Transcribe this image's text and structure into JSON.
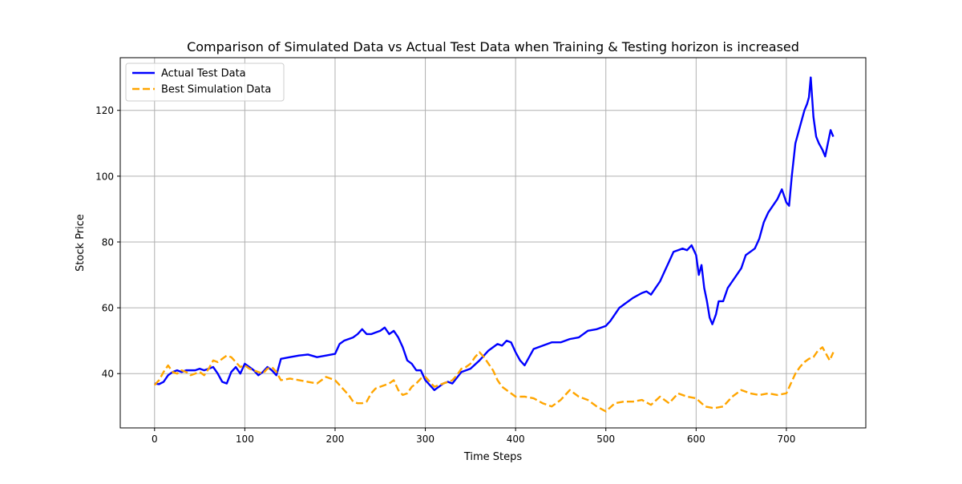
{
  "chart_data": {
    "type": "line",
    "title": "Comparison of Simulated Data vs Actual Test Data when Training & Testing horizon is increased",
    "xlabel": "Time Steps",
    "ylabel": "Stock Price",
    "xlim": [
      -38,
      788
    ],
    "ylim": [
      23.5,
      136
    ],
    "xticks": [
      0,
      100,
      200,
      300,
      400,
      500,
      600,
      700
    ],
    "yticks": [
      40,
      60,
      80,
      100,
      120
    ],
    "grid": true,
    "legend_position": "top-left",
    "series": [
      {
        "name": "Actual Test Data",
        "color": "#0000ff",
        "line_style": "solid",
        "x": [
          0,
          5,
          10,
          15,
          20,
          25,
          30,
          35,
          40,
          45,
          50,
          55,
          60,
          65,
          70,
          75,
          80,
          85,
          90,
          95,
          100,
          105,
          110,
          115,
          120,
          125,
          130,
          135,
          140,
          150,
          160,
          170,
          180,
          190,
          200,
          205,
          210,
          215,
          220,
          225,
          230,
          235,
          240,
          245,
          250,
          255,
          260,
          265,
          270,
          275,
          280,
          285,
          290,
          295,
          300,
          305,
          310,
          315,
          320,
          325,
          330,
          340,
          350,
          360,
          370,
          380,
          385,
          390,
          395,
          400,
          405,
          410,
          420,
          430,
          440,
          450,
          460,
          470,
          480,
          490,
          500,
          505,
          510,
          515,
          520,
          530,
          540,
          545,
          550,
          555,
          560,
          565,
          570,
          575,
          580,
          585,
          590,
          595,
          600,
          603,
          606,
          609,
          612,
          615,
          618,
          622,
          625,
          630,
          635,
          640,
          645,
          650,
          655,
          660,
          665,
          670,
          675,
          680,
          685,
          690,
          695,
          700,
          703,
          706,
          710,
          715,
          720,
          723,
          725,
          727,
          730,
          733,
          736,
          740,
          743,
          746,
          749,
          752
        ],
        "values": [
          37,
          36.8,
          37.5,
          39.5,
          40.5,
          41,
          40.5,
          41,
          41,
          41,
          41.5,
          41,
          41.5,
          42,
          40,
          37.5,
          37,
          40.5,
          42,
          40,
          43,
          42,
          41,
          39.5,
          40.5,
          42,
          41,
          39.5,
          44.5,
          45,
          45.5,
          45.8,
          45,
          45.5,
          46,
          49,
          50,
          50.5,
          51,
          52,
          53.5,
          52,
          52,
          52.5,
          53,
          54,
          52,
          53,
          51,
          48,
          44,
          43,
          41,
          41,
          38,
          36.5,
          35,
          36,
          37,
          37.5,
          37,
          40.5,
          41.5,
          44,
          47,
          49,
          48.5,
          50,
          49.5,
          46.5,
          44,
          42.5,
          47.5,
          48.5,
          49.5,
          49.5,
          50.5,
          51,
          53,
          53.5,
          54.5,
          56,
          58,
          60,
          61,
          63,
          64.5,
          65,
          64,
          66,
          68,
          71,
          74,
          77,
          77.5,
          78,
          77.5,
          79,
          76,
          70,
          73,
          66,
          62,
          57,
          55,
          58,
          62,
          62,
          66,
          68,
          70,
          72,
          76,
          77,
          78,
          81,
          86,
          89,
          91,
          93,
          96,
          92,
          91,
          100,
          110,
          115,
          120,
          122,
          124,
          130,
          118,
          112,
          110,
          108,
          106,
          110,
          114,
          112
        ]
      },
      {
        "name": "Best Simulation Data",
        "color": "#ffa500",
        "line_style": "dashed",
        "x": [
          0,
          5,
          10,
          15,
          20,
          25,
          30,
          35,
          40,
          45,
          50,
          55,
          60,
          65,
          70,
          75,
          80,
          85,
          90,
          95,
          100,
          105,
          110,
          115,
          120,
          125,
          130,
          135,
          140,
          150,
          160,
          170,
          180,
          190,
          200,
          205,
          210,
          215,
          220,
          225,
          230,
          235,
          240,
          245,
          250,
          255,
          260,
          265,
          270,
          275,
          280,
          285,
          290,
          295,
          300,
          305,
          310,
          315,
          320,
          325,
          330,
          335,
          340,
          345,
          350,
          355,
          360,
          365,
          370,
          375,
          380,
          385,
          390,
          395,
          400,
          410,
          420,
          430,
          440,
          450,
          460,
          470,
          480,
          490,
          500,
          510,
          520,
          530,
          540,
          550,
          560,
          570,
          580,
          590,
          600,
          610,
          620,
          630,
          640,
          650,
          660,
          670,
          680,
          690,
          700,
          705,
          710,
          715,
          720,
          725,
          730,
          735,
          740,
          745,
          748,
          752
        ],
        "values": [
          36.5,
          38,
          40.5,
          42.5,
          40.5,
          40,
          41,
          40.5,
          39.5,
          40,
          40.5,
          39.5,
          41.5,
          44,
          43.5,
          44.5,
          45.5,
          45,
          43.5,
          42,
          42.5,
          41.5,
          41,
          40.5,
          40,
          41.5,
          42,
          40.5,
          38,
          38.5,
          38,
          37.5,
          37,
          39,
          38,
          36.5,
          35,
          33.5,
          31.5,
          31,
          31,
          31.5,
          34,
          35.5,
          36,
          36.5,
          37,
          38,
          35,
          33.5,
          34,
          36,
          37,
          38.5,
          39,
          37.5,
          36,
          36.5,
          37,
          37.5,
          38,
          39.5,
          41.5,
          42,
          43,
          45,
          46.5,
          45,
          43,
          41,
          38,
          36,
          35,
          34,
          33,
          33,
          32.5,
          31,
          30,
          32,
          35,
          33,
          32,
          30,
          28.5,
          31,
          31.5,
          31.5,
          32,
          30.5,
          33,
          31,
          34,
          33,
          32.5,
          30,
          29.5,
          30,
          33,
          35,
          34,
          33.5,
          34,
          33.5,
          34,
          37,
          40,
          42,
          43.5,
          44.5,
          45,
          47,
          48,
          45.5,
          44,
          46.5
        ]
      }
    ]
  }
}
